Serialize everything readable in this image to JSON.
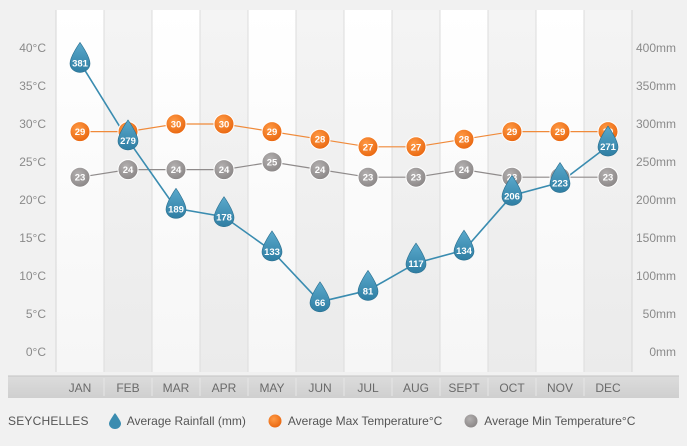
{
  "legend": {
    "title": "SEYCHELLES",
    "items": [
      {
        "label": "Average Rainfall (mm)",
        "icon": "raindrop-icon",
        "color": "#3a8cb0"
      },
      {
        "label": "Average Max Temperature°C",
        "icon": "orange-dot-icon",
        "color": "#f07a1e"
      },
      {
        "label": "Average Min Temperature°C",
        "icon": "gray-dot-icon",
        "color": "#9a9797"
      }
    ]
  },
  "chart_data": {
    "type": "line",
    "categories": [
      "JAN",
      "FEB",
      "MAR",
      "APR",
      "MAY",
      "JUN",
      "JUL",
      "AUG",
      "SEPT",
      "OCT",
      "NOV",
      "DEC"
    ],
    "y_left": {
      "ticks": [
        "0°C",
        "5°C",
        "10°C",
        "15°C",
        "20°C",
        "25°C",
        "30°C",
        "35°C",
        "40°C"
      ],
      "ylim": [
        0,
        40
      ]
    },
    "y_right": {
      "ticks": [
        "0mm",
        "50mm",
        "100mm",
        "150mm",
        "200mm",
        "250mm",
        "300mm",
        "350mm",
        "400mm"
      ],
      "ylim": [
        0,
        400
      ]
    },
    "grid": true,
    "legend_position": "bottom",
    "series": [
      {
        "name": "Average Rainfall (mm)",
        "axis": "right",
        "marker": "drop",
        "color": "#3a8cb0",
        "values": [
          381,
          279,
          189,
          178,
          133,
          66,
          81,
          117,
          134,
          206,
          223,
          271
        ]
      },
      {
        "name": "Average Max Temperature°C",
        "axis": "left",
        "marker": "circle",
        "color": "#f07a1e",
        "values": [
          29,
          29,
          30,
          30,
          29,
          28,
          27,
          27,
          28,
          29,
          29,
          29
        ]
      },
      {
        "name": "Average Min Temperature°C",
        "axis": "left",
        "marker": "circle",
        "color": "#9a9797",
        "values": [
          23,
          24,
          24,
          24,
          25,
          24,
          23,
          23,
          24,
          23,
          23,
          23
        ]
      }
    ]
  }
}
